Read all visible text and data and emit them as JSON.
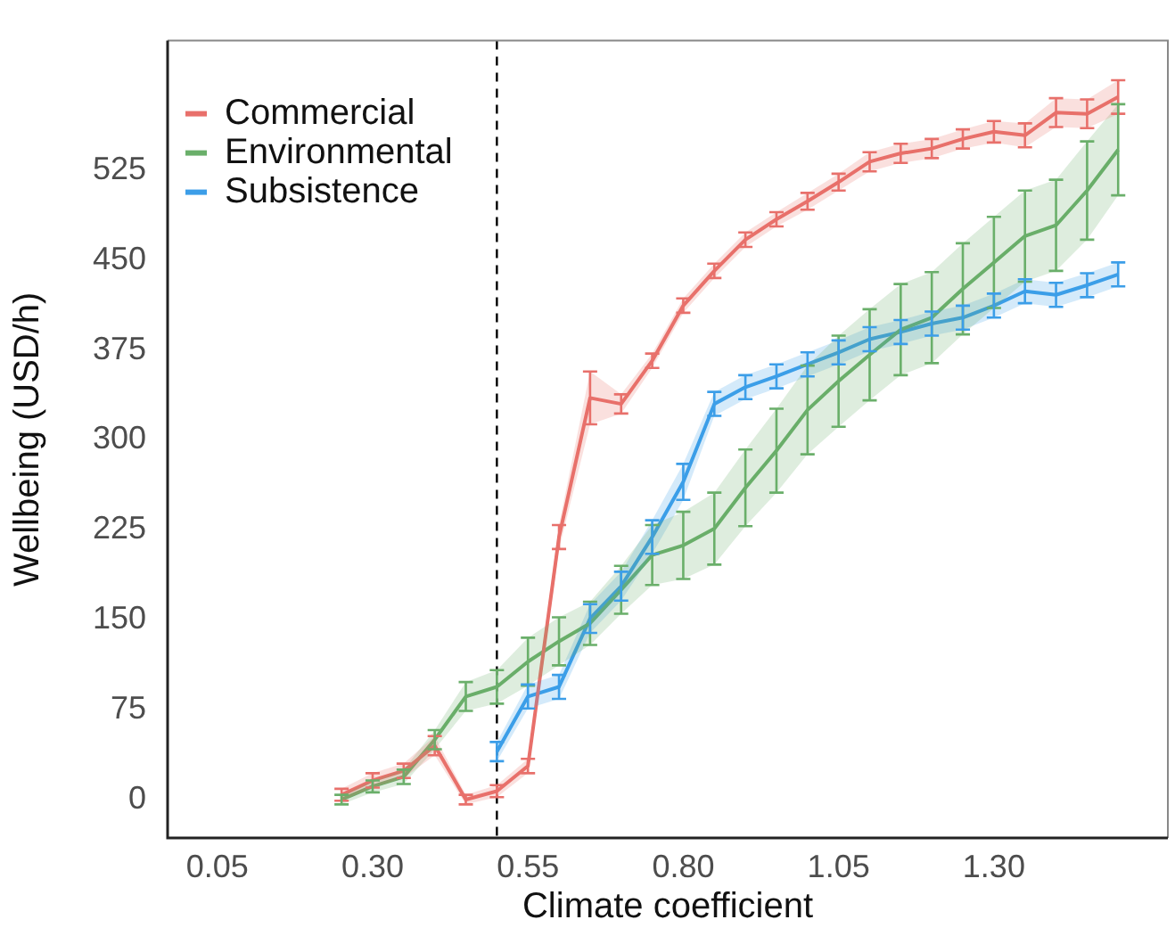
{
  "chart_data": {
    "type": "line",
    "xlabel": "Climate coefficient",
    "ylabel": "Wellbeing (USD/h)",
    "x": [
      0.25,
      0.3,
      0.35,
      0.4,
      0.45,
      0.5,
      0.55,
      0.6,
      0.65,
      0.7,
      0.75,
      0.8,
      0.85,
      0.9,
      0.95,
      1.0,
      1.05,
      1.1,
      1.15,
      1.2,
      1.25,
      1.3,
      1.35,
      1.4,
      1.45,
      1.5
    ],
    "xlim": [
      -0.03,
      1.58
    ],
    "xticks": [
      0.05,
      {
        "value": 0.3,
        "label": "0.30"
      },
      0.55,
      {
        "value": 0.8,
        "label": "0.80"
      },
      1.05,
      {
        "value": 1.3,
        "label": "1.30"
      }
    ],
    "ylim": [
      -32,
      633
    ],
    "yticks": [
      0,
      75,
      150,
      225,
      300,
      375,
      450,
      525
    ],
    "grid": false,
    "legend": "top left",
    "line_style": "solid",
    "ref_lines": [
      {
        "axis": "x",
        "value": 0.5,
        "label": null,
        "color": "#000000",
        "line_style": "dashed"
      }
    ],
    "series": [
      {
        "name": "Commercial",
        "color": "#e8706b",
        "values": [
          4,
          16,
          24,
          45,
          0,
          7,
          28,
          219,
          335,
          330,
          366,
          412,
          441,
          467,
          484,
          499,
          515,
          532,
          539,
          543,
          551,
          557,
          554,
          573,
          572,
          586
        ],
        "errors": [
          5,
          6,
          6,
          8,
          4,
          5,
          6,
          10,
          22,
          8,
          6,
          6,
          6,
          6,
          6,
          7,
          7,
          8,
          8,
          8,
          8,
          9,
          10,
          12,
          12,
          14
        ],
        "lower": [
          -1,
          10,
          18,
          37,
          -4,
          2,
          22,
          209,
          313,
          322,
          360,
          406,
          435,
          461,
          478,
          492,
          508,
          524,
          531,
          535,
          543,
          548,
          544,
          561,
          560,
          572
        ],
        "upper": [
          9,
          22,
          30,
          53,
          4,
          12,
          34,
          229,
          357,
          338,
          372,
          418,
          447,
          473,
          490,
          506,
          522,
          540,
          547,
          551,
          559,
          566,
          564,
          585,
          584,
          600
        ]
      },
      {
        "name": "Environmental",
        "color": "#6aaf6a",
        "values": [
          0,
          11,
          19,
          50,
          86,
          94,
          115,
          132,
          147,
          175,
          204,
          212,
          226,
          260,
          291,
          325,
          349,
          371,
          392,
          402,
          426,
          448,
          470,
          479,
          508,
          542
        ],
        "errors": [
          4,
          5,
          6,
          8,
          12,
          14,
          20,
          20,
          18,
          20,
          25,
          28,
          30,
          32,
          35,
          37,
          38,
          38,
          38,
          38,
          38,
          38,
          38,
          38,
          41,
          38
        ],
        "lower": [
          -4,
          6,
          13,
          42,
          74,
          80,
          95,
          112,
          129,
          155,
          179,
          184,
          196,
          228,
          256,
          288,
          311,
          333,
          354,
          364,
          388,
          410,
          432,
          441,
          467,
          504
        ],
        "upper": [
          4,
          16,
          25,
          58,
          98,
          108,
          135,
          152,
          165,
          195,
          229,
          240,
          256,
          292,
          326,
          362,
          387,
          409,
          430,
          440,
          464,
          486,
          508,
          517,
          549,
          580
        ]
      },
      {
        "name": "Subsistence",
        "color": "#3c9ee8",
        "values": [
          null,
          null,
          null,
          null,
          null,
          40,
          86,
          94,
          151,
          178,
          219,
          265,
          330,
          344,
          353,
          363,
          373,
          384,
          390,
          397,
          402,
          412,
          424,
          421,
          429,
          438
        ],
        "errors": [
          null,
          null,
          null,
          null,
          null,
          8,
          10,
          10,
          12,
          12,
          14,
          15,
          10,
          10,
          10,
          10,
          10,
          10,
          10,
          10,
          10,
          10,
          10,
          10,
          10,
          10
        ],
        "lower": [
          null,
          null,
          null,
          null,
          null,
          32,
          76,
          84,
          139,
          166,
          205,
          250,
          320,
          334,
          343,
          353,
          363,
          374,
          380,
          387,
          392,
          402,
          414,
          411,
          419,
          428
        ],
        "upper": [
          null,
          null,
          null,
          null,
          null,
          48,
          96,
          104,
          163,
          190,
          233,
          280,
          340,
          354,
          363,
          373,
          383,
          394,
          400,
          407,
          412,
          422,
          434,
          431,
          439,
          448
        ]
      }
    ]
  }
}
